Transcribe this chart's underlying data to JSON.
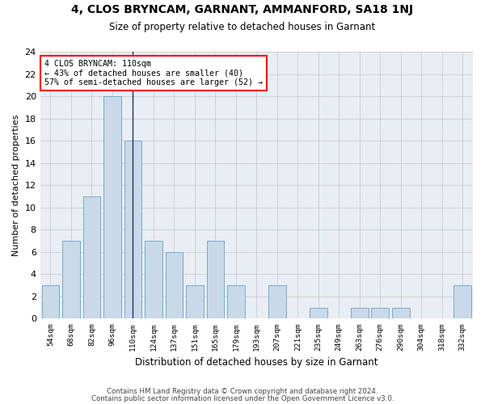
{
  "title1": "4, CLOS BRYNCAM, GARNANT, AMMANFORD, SA18 1NJ",
  "title2": "Size of property relative to detached houses in Garnant",
  "xlabel": "Distribution of detached houses by size in Garnant",
  "ylabel": "Number of detached properties",
  "categories": [
    "54sqm",
    "68sqm",
    "82sqm",
    "96sqm",
    "110sqm",
    "124sqm",
    "137sqm",
    "151sqm",
    "165sqm",
    "179sqm",
    "193sqm",
    "207sqm",
    "221sqm",
    "235sqm",
    "249sqm",
    "263sqm",
    "276sqm",
    "290sqm",
    "304sqm",
    "318sqm",
    "332sqm"
  ],
  "values": [
    3,
    7,
    11,
    20,
    16,
    7,
    6,
    3,
    7,
    3,
    0,
    3,
    0,
    1,
    0,
    1,
    1,
    1,
    0,
    0,
    3
  ],
  "bar_color": "#c9d9ea",
  "bar_edge_color": "#7aaac8",
  "marker_index": 4,
  "annotation_line1": "4 CLOS BRYNCAM: 110sqm",
  "annotation_line2": "← 43% of detached houses are smaller (40)",
  "annotation_line3": "57% of semi-detached houses are larger (52) →",
  "annotation_box_color": "white",
  "annotation_box_edge_color": "red",
  "ylim": [
    0,
    24
  ],
  "yticks": [
    0,
    2,
    4,
    6,
    8,
    10,
    12,
    14,
    16,
    18,
    20,
    22,
    24
  ],
  "grid_color": "#cccccc",
  "bg_color": "#e8eef4",
  "footer1": "Contains HM Land Registry data © Crown copyright and database right 2024.",
  "footer2": "Contains public sector information licensed under the Open Government Licence v3.0."
}
